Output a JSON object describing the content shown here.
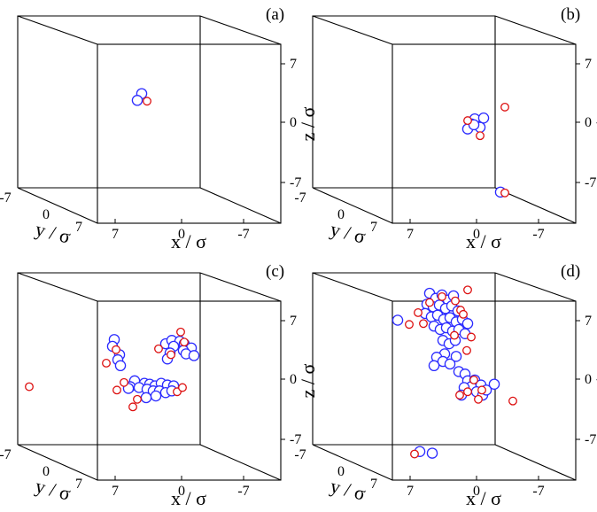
{
  "figure": {
    "axis_labels": {
      "x": "x / σ",
      "y": "y / σ",
      "z": "z / σ"
    },
    "tick_labels": {
      "x": [
        "7",
        "0",
        "-7"
      ],
      "y": [
        "-7",
        "0",
        "7"
      ],
      "z": [
        "7",
        "0",
        "-7"
      ]
    }
  },
  "chart_data": [
    {
      "type": "scatter",
      "panel_label": "(a)",
      "xlabel": "x / σ",
      "ylabel": "y / σ",
      "zlabel": "z / σ",
      "series": [
        {
          "color": "#2b2bff",
          "points": [
            [
              4.5,
              3.4
            ],
            [
              5.0,
              2.6
            ]
          ]
        },
        {
          "color": "#dd1111",
          "points": [
            [
              3.9,
              2.5
            ]
          ]
        }
      ]
    },
    {
      "type": "scatter",
      "panel_label": "(b)",
      "xlabel": "x / σ",
      "ylabel": "y / σ",
      "zlabel": "z / σ",
      "series": [
        {
          "color": "#2b2bff",
          "points": [
            [
              0.2,
              0.4
            ],
            [
              -0.8,
              0.5
            ],
            [
              0.6,
              -0.2
            ],
            [
              -0.4,
              -0.6
            ],
            [
              1.0,
              -0.8
            ],
            [
              0.3,
              -0.3
            ],
            [
              -2.7,
              -8.3
            ]
          ]
        },
        {
          "color": "#dd1111",
          "points": [
            [
              1.0,
              0.2
            ],
            [
              -0.4,
              -1.6
            ],
            [
              -3.2,
              1.8
            ],
            [
              -3.2,
              -8.4
            ]
          ]
        }
      ]
    },
    {
      "type": "scatter",
      "panel_label": "(c)",
      "xlabel": "x / σ",
      "ylabel": "y / σ",
      "zlabel": "z / σ",
      "series": [
        {
          "color": "#2b2bff",
          "points": [
            [
              7.6,
              4.7
            ],
            [
              7.8,
              3.9
            ],
            [
              7.0,
              2.9
            ],
            [
              7.2,
              2.3
            ],
            [
              6.9,
              1.6
            ],
            [
              1.8,
              4.2
            ],
            [
              1.1,
              4.6
            ],
            [
              0.2,
              4.5
            ],
            [
              -0.3,
              4.2
            ],
            [
              0.9,
              3.9
            ],
            [
              -1.1,
              3.7
            ],
            [
              -0.2,
              3.4
            ],
            [
              -0.5,
              3.0
            ],
            [
              -1.4,
              2.8
            ],
            [
              1.3,
              3.1
            ],
            [
              1.6,
              2.4
            ],
            [
              5.3,
              -0.2
            ],
            [
              4.2,
              -0.5
            ],
            [
              3.6,
              -0.6
            ],
            [
              3.0,
              -0.8
            ],
            [
              2.3,
              -0.5
            ],
            [
              1.6,
              -0.7
            ],
            [
              0.9,
              -0.8
            ],
            [
              5.8,
              -0.9
            ],
            [
              4.8,
              -1.0
            ],
            [
              3.9,
              -1.2
            ],
            [
              3.2,
              -1.4
            ],
            [
              2.5,
              -1.4
            ],
            [
              1.8,
              -1.6
            ],
            [
              1.1,
              -1.4
            ],
            [
              2.9,
              -2.0
            ],
            [
              4.0,
              -2.2
            ],
            [
              6.0,
              -1.1
            ]
          ]
        },
        {
          "color": "#dd1111",
          "points": [
            [
              7.4,
              3.5
            ],
            [
              8.5,
              1.9
            ],
            [
              0.1,
              5.6
            ],
            [
              -0.3,
              4.4
            ],
            [
              1.2,
              2.9
            ],
            [
              6.5,
              -0.4
            ],
            [
              7.3,
              -1.3
            ],
            [
              5.0,
              -2.4
            ],
            [
              5.5,
              -3.3
            ],
            [
              0.5,
              -1.5
            ],
            [
              -0.1,
              -1.0
            ],
            [
              17.2,
              -0.9
            ],
            [
              2.6,
              3.6
            ]
          ]
        }
      ]
    },
    {
      "type": "scatter",
      "panel_label": "(d)",
      "xlabel": "x / σ",
      "ylabel": "y / σ",
      "zlabel": "z / σ",
      "series": [
        {
          "color": "#2b2bff",
          "points": [
            [
              5.3,
              10.2
            ],
            [
              4.6,
              9.6
            ],
            [
              3.9,
              10.0
            ],
            [
              3.2,
              9.4
            ],
            [
              2.6,
              9.9
            ],
            [
              5.6,
              8.9
            ],
            [
              4.9,
              8.6
            ],
            [
              4.2,
              8.8
            ],
            [
              3.5,
              8.4
            ],
            [
              2.8,
              8.7
            ],
            [
              2.1,
              8.1
            ],
            [
              5.8,
              7.8
            ],
            [
              5.1,
              7.4
            ],
            [
              4.4,
              7.6
            ],
            [
              3.7,
              7.1
            ],
            [
              3.0,
              7.3
            ],
            [
              2.3,
              6.8
            ],
            [
              1.6,
              7.1
            ],
            [
              1.0,
              6.6
            ],
            [
              4.8,
              6.3
            ],
            [
              4.1,
              5.9
            ],
            [
              3.4,
              6.1
            ],
            [
              2.7,
              5.7
            ],
            [
              2.0,
              5.9
            ],
            [
              1.3,
              5.4
            ],
            [
              3.8,
              4.6
            ],
            [
              3.1,
              4.2
            ],
            [
              2.4,
              4.6
            ],
            [
              3.6,
              3.0
            ],
            [
              4.5,
              2.6
            ],
            [
              3.8,
              2.1
            ],
            [
              4.8,
              1.6
            ],
            [
              3.0,
              1.8
            ],
            [
              2.3,
              2.7
            ],
            [
              2.0,
              0.9
            ],
            [
              1.3,
              0.6
            ],
            [
              1.0,
              -0.2
            ],
            [
              0.2,
              -0.1
            ],
            [
              -0.5,
              -0.7
            ],
            [
              0.6,
              -0.9
            ],
            [
              1.4,
              -1.0
            ],
            [
              0.0,
              -1.5
            ],
            [
              -0.7,
              -1.9
            ],
            [
              1.7,
              -1.9
            ],
            [
              -1.1,
              -1.3
            ],
            [
              -2.0,
              -0.6
            ],
            [
              6.4,
              -8.6
            ],
            [
              5.0,
              -8.8
            ],
            [
              8.9,
              7.0
            ]
          ]
        },
        {
          "color": "#dd1111",
          "points": [
            [
              5.3,
              9.1
            ],
            [
              3.9,
              9.8
            ],
            [
              2.4,
              9.3
            ],
            [
              1.0,
              10.6
            ],
            [
              1.8,
              8.2
            ],
            [
              6.6,
              7.9
            ],
            [
              6.0,
              6.6
            ],
            [
              1.5,
              7.7
            ],
            [
              2.5,
              5.2
            ],
            [
              0.6,
              5.0
            ],
            [
              1.1,
              3.4
            ],
            [
              0.3,
              -0.1
            ],
            [
              -0.6,
              -1.3
            ],
            [
              1.0,
              -1.5
            ],
            [
              -0.2,
              -2.4
            ],
            [
              -4.1,
              -2.6
            ],
            [
              1.9,
              -1.9
            ],
            [
              7.0,
              -8.9
            ],
            [
              7.6,
              6.5
            ]
          ]
        }
      ]
    }
  ]
}
